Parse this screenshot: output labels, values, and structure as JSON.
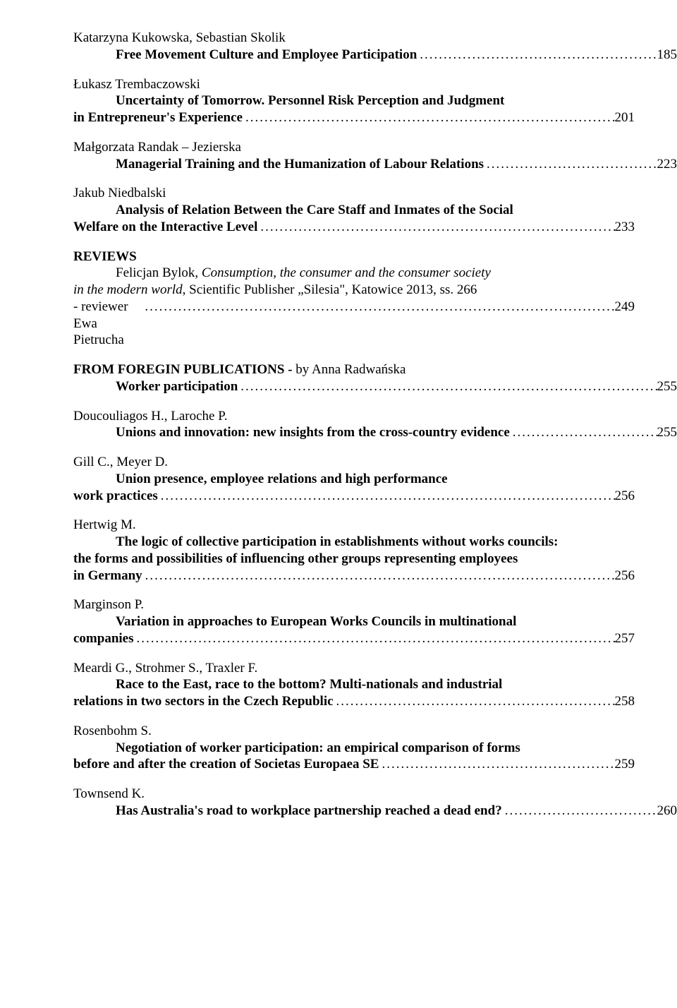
{
  "entries": [
    {
      "author": "Katarzyna Kukowska, Sebastian Skolik",
      "title_l1": "Free Movement Culture and Employee Participation",
      "page": "185"
    },
    {
      "author": "Łukasz Trembaczowski",
      "title_l1": "Uncertainty of Tomorrow. Personnel Risk Perception and Judgment",
      "title_l2_prefix": "in Entrepreneur's Experience",
      "page": "201"
    },
    {
      "author": "Małgorzata Randak – Jezierska",
      "title_l1": "Managerial Training and the Humanization of Labour Relations",
      "page": "223"
    },
    {
      "author": "Jakub Niedbalski",
      "title_l1": "Analysis of Relation Between the Care Staff and Inmates of the Social",
      "title_l2_prefix": "Welfare on the Interactive Level",
      "page": "233"
    }
  ],
  "reviews": {
    "heading": "REVIEWS",
    "l1_pre": "Felicjan Bylok,  ",
    "l1_ital": "Consumption, the consumer and the consumer society",
    "l2_ital": "in the modern world",
    "l2_post": ", Scientific Publisher „Silesia\", Katowice 2013, ss. 266",
    "l3": "- reviewer  Ewa Pietrucha",
    "page": "249"
  },
  "foreign_pub": {
    "head_pre": "FROM FOREGIN PUBLICATIONS - ",
    "head_post": "by Anna Radwańska",
    "title": "Worker participation",
    "page": "255"
  },
  "refs": [
    {
      "author": "Doucouliagos H., Laroche P.",
      "title_l1": "Unions and innovation: new insights from the cross-country evidence",
      "page": "255"
    },
    {
      "author": "Gill C., Meyer D.",
      "title_l1": "Union presence, employee relations and high performance",
      "title_l2_prefix": "work practices",
      "page": "256"
    },
    {
      "author": "Hertwig M.",
      "title_l1": "The logic of collective participation in establishments without works councils:",
      "title_l2": "the forms and possibilities of influencing other groups representing employees",
      "title_l3_prefix": "in Germany",
      "page": "256"
    },
    {
      "author": "Marginson P.",
      "title_l1": "Variation in approaches to European Works Councils in multinational",
      "title_l2_prefix": "companies",
      "page": "257"
    },
    {
      "author": "Meardi G., Strohmer S., Traxler F.",
      "title_l1": "Race to the East, race to the bottom? Multi-nationals and industrial",
      "title_l2_prefix": "relations in two sectors in the Czech Republic",
      "page": "258"
    },
    {
      "author": "Rosenbohm S.",
      "title_l1": "Negotiation of worker participation: an empirical comparison of forms",
      "title_l2_prefix": "before and after the creation of Societas Europaea SE",
      "page": "259"
    },
    {
      "author": "Townsend K.",
      "title_l1": "Has Australia's road to workplace partnership reached a dead end?",
      "page": "260"
    }
  ]
}
